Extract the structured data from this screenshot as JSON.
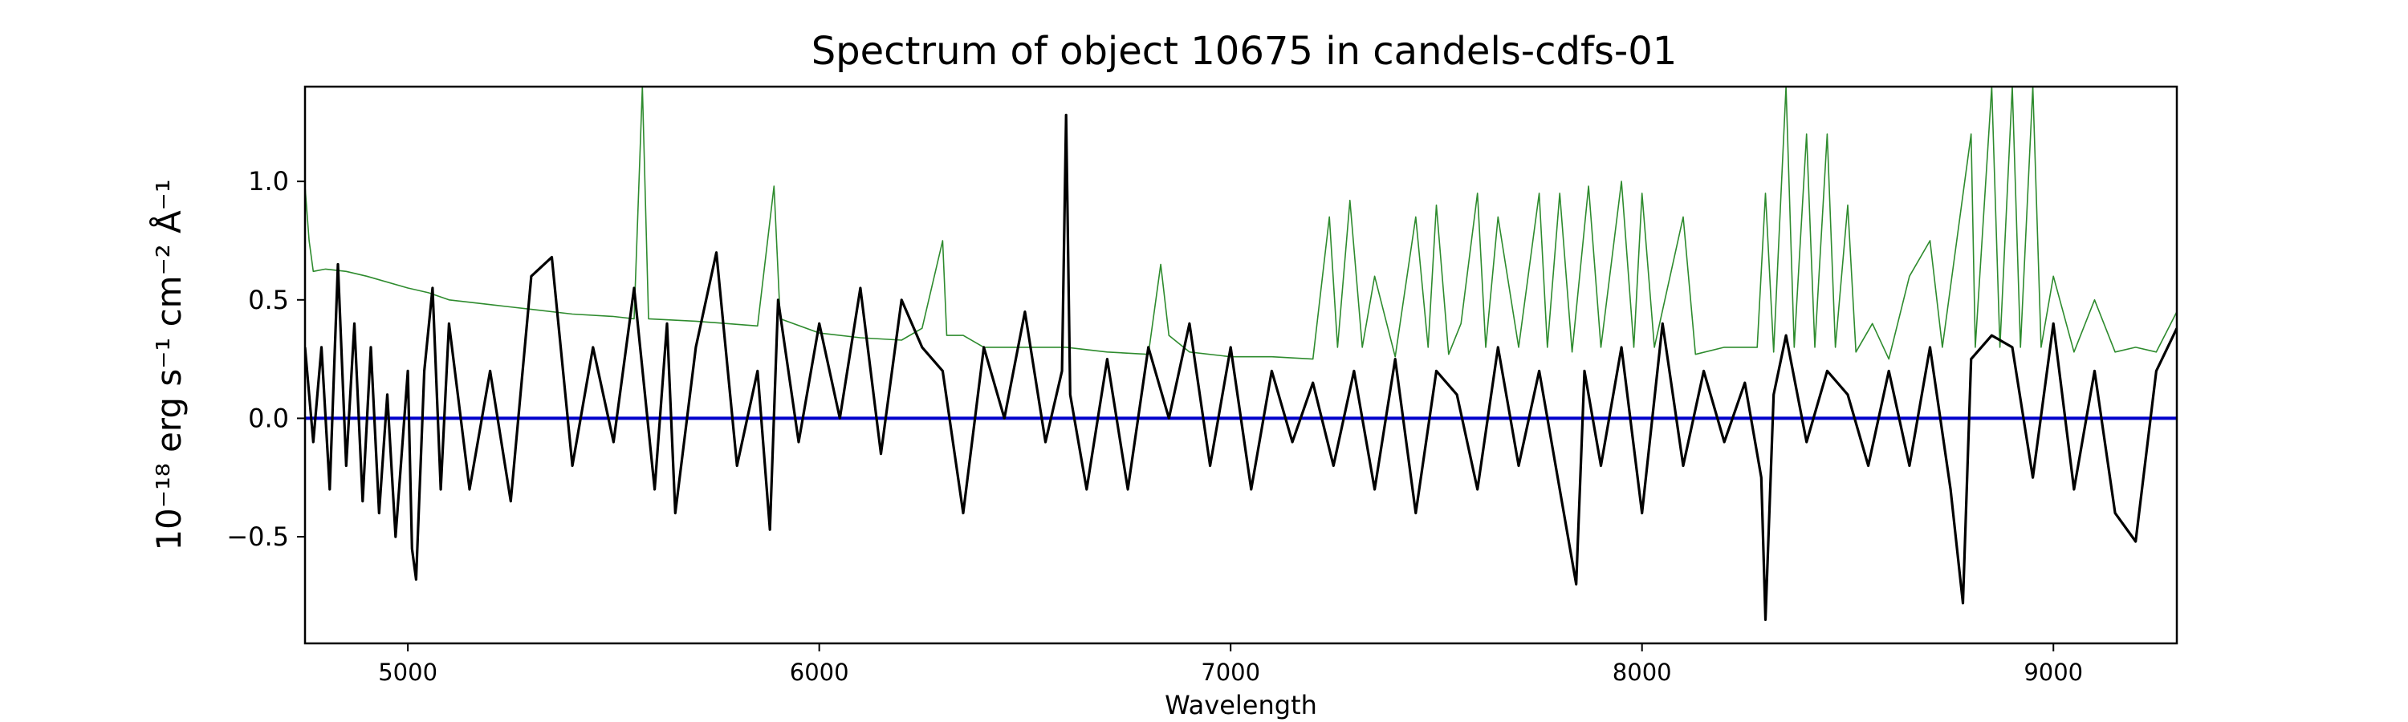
{
  "chart_data": {
    "type": "line",
    "title": "Spectrum of object 10675 in candels-cdfs-01",
    "xlabel": "Wavelength",
    "ylabel": "10⁻¹⁸ erg s⁻¹ cm⁻² Å⁻¹",
    "xlim": [
      4750,
      9300
    ],
    "ylim": [
      -0.95,
      1.4
    ],
    "x_ticks": [
      5000,
      6000,
      7000,
      8000,
      9000
    ],
    "x_tick_labels": [
      "5000",
      "6000",
      "7000",
      "8000",
      "9000"
    ],
    "y_ticks": [
      -0.5,
      0.0,
      0.5,
      1.0
    ],
    "y_tick_labels": [
      "−0.5",
      "0.0",
      "0.5",
      "1.0"
    ],
    "grid": false,
    "series": [
      {
        "color": "#2e8b2e",
        "style": "thin",
        "points": [
          [
            4750,
            0.98
          ],
          [
            4760,
            0.75
          ],
          [
            4770,
            0.62
          ],
          [
            4800,
            0.63
          ],
          [
            4850,
            0.62
          ],
          [
            4900,
            0.6
          ],
          [
            5000,
            0.55
          ],
          [
            5050,
            0.53
          ],
          [
            5100,
            0.5
          ],
          [
            5200,
            0.48
          ],
          [
            5300,
            0.46
          ],
          [
            5400,
            0.44
          ],
          [
            5500,
            0.43
          ],
          [
            5550,
            0.42
          ],
          [
            5570,
            1.4
          ],
          [
            5585,
            0.42
          ],
          [
            5700,
            0.41
          ],
          [
            5850,
            0.39
          ],
          [
            5890,
            0.98
          ],
          [
            5905,
            0.42
          ],
          [
            6000,
            0.36
          ],
          [
            6100,
            0.34
          ],
          [
            6200,
            0.33
          ],
          [
            6250,
            0.38
          ],
          [
            6300,
            0.75
          ],
          [
            6310,
            0.35
          ],
          [
            6350,
            0.35
          ],
          [
            6400,
            0.3
          ],
          [
            6500,
            0.3
          ],
          [
            6600,
            0.3
          ],
          [
            6700,
            0.28
          ],
          [
            6800,
            0.27
          ],
          [
            6830,
            0.65
          ],
          [
            6850,
            0.35
          ],
          [
            6900,
            0.28
          ],
          [
            7000,
            0.26
          ],
          [
            7100,
            0.26
          ],
          [
            7200,
            0.25
          ],
          [
            7240,
            0.85
          ],
          [
            7260,
            0.3
          ],
          [
            7290,
            0.92
          ],
          [
            7320,
            0.3
          ],
          [
            7350,
            0.6
          ],
          [
            7400,
            0.26
          ],
          [
            7450,
            0.85
          ],
          [
            7480,
            0.3
          ],
          [
            7500,
            0.9
          ],
          [
            7530,
            0.27
          ],
          [
            7560,
            0.4
          ],
          [
            7600,
            0.95
          ],
          [
            7620,
            0.3
          ],
          [
            7650,
            0.85
          ],
          [
            7700,
            0.3
          ],
          [
            7750,
            0.95
          ],
          [
            7770,
            0.3
          ],
          [
            7800,
            0.95
          ],
          [
            7830,
            0.28
          ],
          [
            7870,
            0.98
          ],
          [
            7900,
            0.3
          ],
          [
            7950,
            1.0
          ],
          [
            7980,
            0.3
          ],
          [
            8000,
            0.95
          ],
          [
            8030,
            0.3
          ],
          [
            8100,
            0.85
          ],
          [
            8130,
            0.27
          ],
          [
            8200,
            0.3
          ],
          [
            8280,
            0.3
          ],
          [
            8300,
            0.95
          ],
          [
            8320,
            0.28
          ],
          [
            8350,
            1.4
          ],
          [
            8370,
            0.3
          ],
          [
            8400,
            1.2
          ],
          [
            8420,
            0.3
          ],
          [
            8450,
            1.2
          ],
          [
            8470,
            0.3
          ],
          [
            8500,
            0.9
          ],
          [
            8520,
            0.28
          ],
          [
            8560,
            0.4
          ],
          [
            8600,
            0.25
          ],
          [
            8650,
            0.6
          ],
          [
            8700,
            0.75
          ],
          [
            8730,
            0.3
          ],
          [
            8800,
            1.2
          ],
          [
            8810,
            0.3
          ],
          [
            8850,
            1.4
          ],
          [
            8870,
            0.3
          ],
          [
            8900,
            1.4
          ],
          [
            8920,
            0.3
          ],
          [
            8950,
            1.4
          ],
          [
            8970,
            0.3
          ],
          [
            9000,
            0.6
          ],
          [
            9050,
            0.28
          ],
          [
            9100,
            0.5
          ],
          [
            9150,
            0.28
          ],
          [
            9200,
            0.3
          ],
          [
            9250,
            0.28
          ],
          [
            9300,
            0.45
          ]
        ]
      },
      {
        "color": "#000000",
        "style": "thick",
        "points": [
          [
            4750,
            0.3
          ],
          [
            4770,
            -0.1
          ],
          [
            4790,
            0.3
          ],
          [
            4810,
            -0.3
          ],
          [
            4830,
            0.65
          ],
          [
            4850,
            -0.2
          ],
          [
            4870,
            0.4
          ],
          [
            4890,
            -0.35
          ],
          [
            4910,
            0.3
          ],
          [
            4930,
            -0.4
          ],
          [
            4950,
            0.1
          ],
          [
            4970,
            -0.5
          ],
          [
            5000,
            0.2
          ],
          [
            5010,
            -0.55
          ],
          [
            5020,
            -0.68
          ],
          [
            5040,
            0.2
          ],
          [
            5060,
            0.55
          ],
          [
            5080,
            -0.3
          ],
          [
            5100,
            0.4
          ],
          [
            5150,
            -0.3
          ],
          [
            5200,
            0.2
          ],
          [
            5250,
            -0.35
          ],
          [
            5300,
            0.6
          ],
          [
            5350,
            0.68
          ],
          [
            5400,
            -0.2
          ],
          [
            5450,
            0.3
          ],
          [
            5500,
            -0.1
          ],
          [
            5550,
            0.55
          ],
          [
            5600,
            -0.3
          ],
          [
            5630,
            0.4
          ],
          [
            5650,
            -0.4
          ],
          [
            5700,
            0.3
          ],
          [
            5750,
            0.7
          ],
          [
            5800,
            -0.2
          ],
          [
            5850,
            0.2
          ],
          [
            5880,
            -0.47
          ],
          [
            5900,
            0.5
          ],
          [
            5950,
            -0.1
          ],
          [
            6000,
            0.4
          ],
          [
            6050,
            0.0
          ],
          [
            6100,
            0.55
          ],
          [
            6150,
            -0.15
          ],
          [
            6200,
            0.5
          ],
          [
            6250,
            0.3
          ],
          [
            6300,
            0.2
          ],
          [
            6350,
            -0.4
          ],
          [
            6400,
            0.3
          ],
          [
            6450,
            0.0
          ],
          [
            6500,
            0.45
          ],
          [
            6550,
            -0.1
          ],
          [
            6590,
            0.2
          ],
          [
            6600,
            1.28
          ],
          [
            6610,
            0.1
          ],
          [
            6650,
            -0.3
          ],
          [
            6700,
            0.25
          ],
          [
            6750,
            -0.3
          ],
          [
            6800,
            0.3
          ],
          [
            6850,
            0.0
          ],
          [
            6900,
            0.4
          ],
          [
            6950,
            -0.2
          ],
          [
            7000,
            0.3
          ],
          [
            7050,
            -0.3
          ],
          [
            7100,
            0.2
          ],
          [
            7150,
            -0.1
          ],
          [
            7200,
            0.15
          ],
          [
            7250,
            -0.2
          ],
          [
            7300,
            0.2
          ],
          [
            7350,
            -0.3
          ],
          [
            7400,
            0.25
          ],
          [
            7450,
            -0.4
          ],
          [
            7500,
            0.2
          ],
          [
            7550,
            0.1
          ],
          [
            7600,
            -0.3
          ],
          [
            7650,
            0.3
          ],
          [
            7700,
            -0.2
          ],
          [
            7750,
            0.2
          ],
          [
            7800,
            -0.3
          ],
          [
            7840,
            -0.7
          ],
          [
            7860,
            0.2
          ],
          [
            7900,
            -0.2
          ],
          [
            7950,
            0.3
          ],
          [
            8000,
            -0.4
          ],
          [
            8050,
            0.4
          ],
          [
            8100,
            -0.2
          ],
          [
            8150,
            0.2
          ],
          [
            8200,
            -0.1
          ],
          [
            8250,
            0.15
          ],
          [
            8290,
            -0.25
          ],
          [
            8300,
            -0.85
          ],
          [
            8320,
            0.1
          ],
          [
            8350,
            0.35
          ],
          [
            8400,
            -0.1
          ],
          [
            8450,
            0.2
          ],
          [
            8500,
            0.1
          ],
          [
            8550,
            -0.2
          ],
          [
            8600,
            0.2
          ],
          [
            8650,
            -0.2
          ],
          [
            8700,
            0.3
          ],
          [
            8750,
            -0.3
          ],
          [
            8780,
            -0.78
          ],
          [
            8800,
            0.25
          ],
          [
            8850,
            0.35
          ],
          [
            8900,
            0.3
          ],
          [
            8950,
            -0.25
          ],
          [
            9000,
            0.4
          ],
          [
            9050,
            -0.3
          ],
          [
            9100,
            0.2
          ],
          [
            9150,
            -0.4
          ],
          [
            9200,
            -0.52
          ],
          [
            9250,
            0.2
          ],
          [
            9300,
            0.38
          ]
        ]
      },
      {
        "color": "#0000cc",
        "style": "zero-line",
        "points": [
          [
            4750,
            0.0
          ],
          [
            9300,
            0.0
          ]
        ]
      }
    ]
  }
}
